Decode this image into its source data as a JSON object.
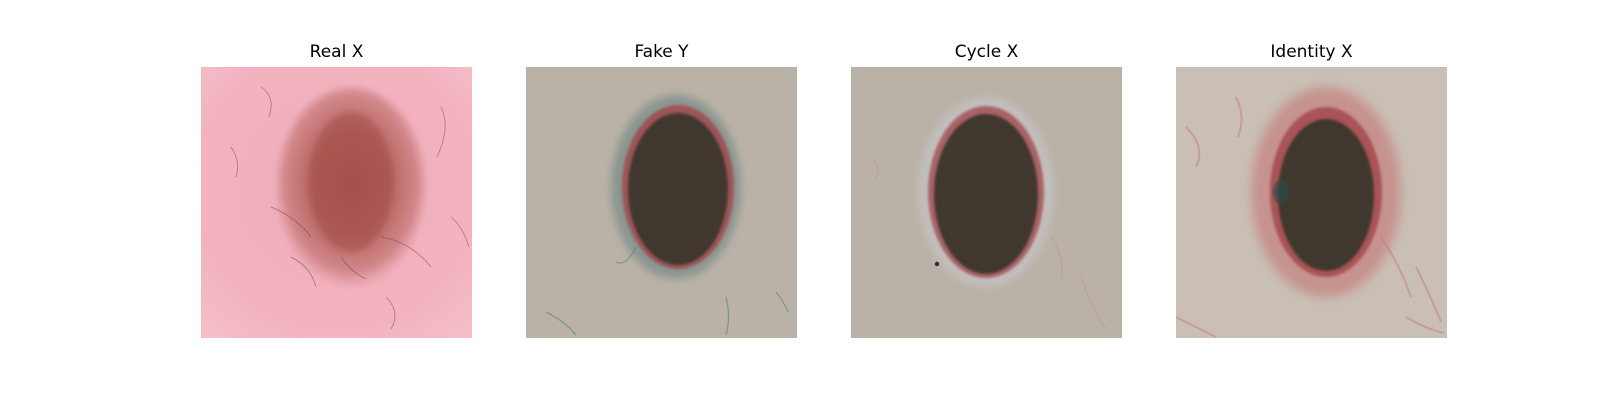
{
  "figure": {
    "panels": [
      {
        "title": "Real X"
      },
      {
        "title": "Fake Y"
      },
      {
        "title": "Cycle X"
      },
      {
        "title": "Identity X"
      }
    ]
  },
  "colors": {
    "real_skin": "#f2b3bf",
    "real_lesion": "#b5615c",
    "gen_background": "#bab2a6",
    "gen_lesion": "#3f372e",
    "lesion_rim_red": "#a2454a",
    "lesion_halo_teal": "#4f7476"
  }
}
